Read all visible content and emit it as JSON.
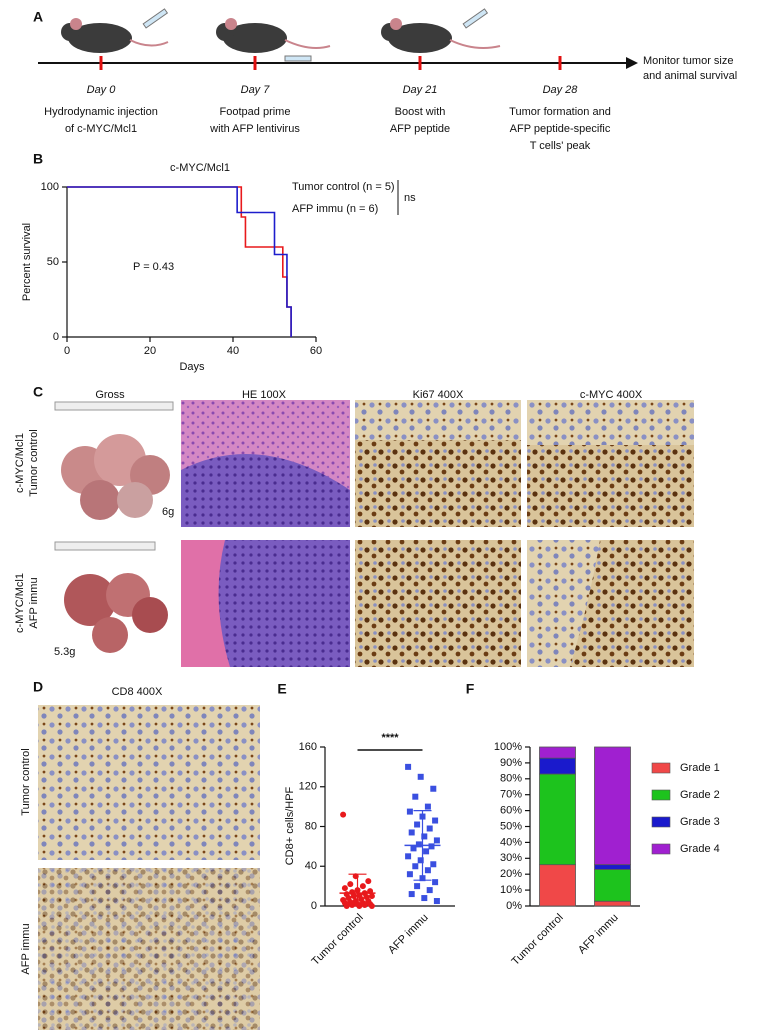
{
  "panel_labels": [
    "A",
    "B",
    "C",
    "D",
    "E",
    "F"
  ],
  "timeline": {
    "events": [
      {
        "day": "Day 0",
        "description": [
          "Hydrodynamic injection",
          "of  c-MYC/Mcl1"
        ]
      },
      {
        "day": "Day 7",
        "description": [
          "Footpad prime",
          "with AFP lentivirus"
        ]
      },
      {
        "day": "Day 21",
        "description": [
          "Boost with",
          "AFP peptide"
        ]
      },
      {
        "day": "Day 28",
        "description": [
          "Tumor formation and",
          "AFP peptide-specific",
          "T cells' peak"
        ]
      }
    ],
    "end_label": [
      "Monitor tumor size",
      "and animal survival"
    ]
  },
  "histology": {
    "columns": [
      "Gross",
      "HE 100X",
      "Ki67 400X",
      "c-MYC 400X"
    ],
    "rows": [
      {
        "label": [
          "c-MYC/Mcl1",
          "Tumor control"
        ],
        "weight": "6g"
      },
      {
        "label": [
          "c-MYC/Mcl1",
          "AFP immu"
        ],
        "weight": "5.3g"
      }
    ]
  },
  "cd8": {
    "title": "CD8 400X",
    "rows": [
      "Tumor control",
      "AFP immu"
    ]
  },
  "chart_data": [
    {
      "type": "line",
      "step": true,
      "title": "c-MYC/Mcl1",
      "xlabel": "Days",
      "ylabel": "Percent survival",
      "xlim": [
        0,
        60
      ],
      "xticks": [
        0,
        20,
        40,
        60
      ],
      "ylim": [
        0,
        100
      ],
      "yticks": [
        0,
        50,
        100
      ],
      "series": [
        {
          "name": "Tumor control (n = 5)",
          "color": "#e8191c",
          "x": [
            0,
            42,
            43,
            52,
            53,
            54
          ],
          "values": [
            100,
            80,
            60,
            40,
            20,
            0
          ]
        },
        {
          "name": "AFP immu (n = 6)",
          "color": "#1d1dcc",
          "x": [
            0,
            41,
            50,
            53,
            54
          ],
          "values": [
            100,
            83,
            55,
            20,
            0
          ]
        }
      ],
      "annotations": [
        "ns",
        "P = 0.43"
      ]
    },
    {
      "type": "strip",
      "ylabel": "CD8+ cells/HPF",
      "categories": [
        "Tumor control",
        "AFP immu"
      ],
      "ylim": [
        0,
        160
      ],
      "yticks": [
        0,
        40,
        80,
        120,
        160
      ],
      "series": [
        {
          "color": "#e8191c",
          "values": [
            92,
            30,
            25,
            22,
            20,
            18,
            16,
            15,
            14,
            13,
            12,
            11,
            10,
            10,
            9,
            8,
            7,
            6,
            5,
            5,
            4,
            3,
            3,
            2,
            2,
            1,
            1,
            0,
            0,
            0
          ],
          "mean": 13,
          "sd": 19
        },
        {
          "color": "#3a4fe0",
          "values": [
            140,
            130,
            118,
            110,
            100,
            95,
            90,
            86,
            82,
            78,
            74,
            70,
            66,
            62,
            60,
            58,
            55,
            50,
            46,
            42,
            40,
            36,
            32,
            28,
            24,
            20,
            16,
            12,
            8,
            5
          ],
          "mean": 61,
          "sd": 35
        }
      ],
      "annotation": "****"
    },
    {
      "type": "stacked_bar",
      "categories": [
        "Tumor control",
        "AFP immu"
      ],
      "ylim": [
        0,
        100
      ],
      "yticks": [
        {
          "value": 0,
          "label": "0%"
        },
        {
          "value": 10,
          "label": "10%"
        },
        {
          "value": 20,
          "label": "20%"
        },
        {
          "value": 30,
          "label": "30%"
        },
        {
          "value": 40,
          "label": "40%"
        },
        {
          "value": 50,
          "label": "50%"
        },
        {
          "value": 60,
          "label": "60%"
        },
        {
          "value": 70,
          "label": "70%"
        },
        {
          "value": 80,
          "label": "80%"
        },
        {
          "value": 90,
          "label": "90%"
        },
        {
          "value": 100,
          "label": "100%"
        }
      ],
      "series": [
        {
          "name": "Grade 1",
          "color": "#f04848",
          "values": [
            26,
            3
          ]
        },
        {
          "name": "Grade 2",
          "color": "#1dc31d",
          "values": [
            57,
            20
          ]
        },
        {
          "name": "Grade 3",
          "color": "#1a1acc",
          "values": [
            10,
            3
          ]
        },
        {
          "name": "Grade 4",
          "color": "#a020d0",
          "values": [
            7,
            74
          ]
        }
      ]
    }
  ]
}
